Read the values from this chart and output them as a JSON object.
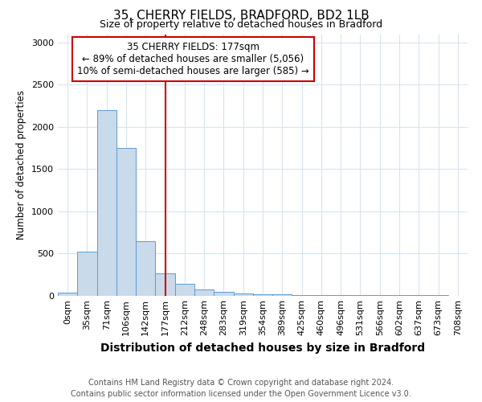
{
  "title": "35, CHERRY FIELDS, BRADFORD, BD2 1LB",
  "subtitle": "Size of property relative to detached houses in Bradford",
  "xlabel": "Distribution of detached houses by size in Bradford",
  "ylabel": "Number of detached properties",
  "footnote1": "Contains HM Land Registry data © Crown copyright and database right 2024.",
  "footnote2": "Contains public sector information licensed under the Open Government Licence v3.0.",
  "annotation_line1": "35 CHERRY FIELDS: 177sqm",
  "annotation_line2": "← 89% of detached houses are smaller (5,056)",
  "annotation_line3": "10% of semi-detached houses are larger (585) →",
  "bar_color": "#c9daea",
  "bar_edge_color": "#5b9bd5",
  "vline_color": "#cc0000",
  "vline_x": 5,
  "categories": [
    "0sqm",
    "35sqm",
    "71sqm",
    "106sqm",
    "142sqm",
    "177sqm",
    "212sqm",
    "248sqm",
    "283sqm",
    "319sqm",
    "354sqm",
    "389sqm",
    "425sqm",
    "460sqm",
    "496sqm",
    "531sqm",
    "566sqm",
    "602sqm",
    "637sqm",
    "673sqm",
    "708sqm"
  ],
  "values": [
    30,
    520,
    2200,
    1750,
    640,
    265,
    140,
    75,
    45,
    25,
    18,
    12,
    8,
    5,
    4,
    2,
    2,
    1,
    1,
    1,
    0
  ],
  "ylim": [
    0,
    3100
  ],
  "yticks": [
    0,
    500,
    1000,
    1500,
    2000,
    2500,
    3000
  ],
  "background_color": "#ffffff",
  "grid_color": "#d8e4f0",
  "title_fontsize": 11,
  "subtitle_fontsize": 9,
  "xlabel_fontsize": 10,
  "ylabel_fontsize": 8.5,
  "tick_fontsize": 8,
  "footnote_fontsize": 7
}
